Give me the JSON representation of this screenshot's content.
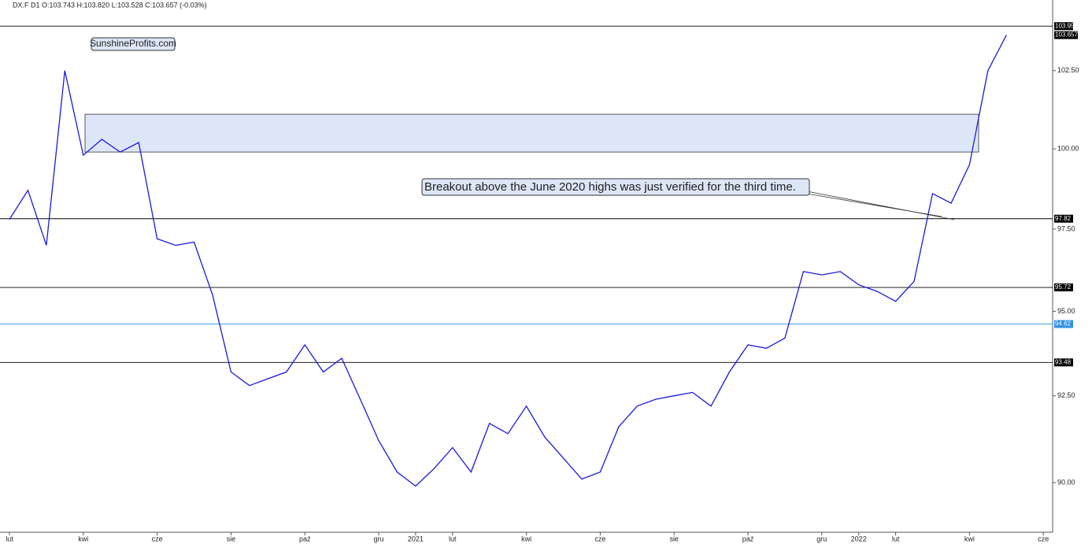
{
  "chart_data": {
    "type": "line",
    "header": "DX.F  D1  O:103.743  H:103.820  L:103.528  C:103.657  (-0.03%)",
    "watermark": "SunshineProfits.com",
    "annotation": "Breakout above the June 2020 highs was just verified for the third time.",
    "categories": [
      "lut",
      null,
      null,
      null,
      "kwi",
      null,
      null,
      null,
      "cze",
      null,
      null,
      null,
      "sie",
      null,
      null,
      null,
      "paź",
      null,
      null,
      null,
      "gru",
      null,
      "2021",
      null,
      "lut",
      null,
      null,
      null,
      "kwi",
      null,
      null,
      null,
      "cze",
      null,
      null,
      null,
      "sie",
      null,
      null,
      null,
      "paź",
      null,
      null,
      null,
      "gru",
      null,
      "2022",
      null,
      "lut",
      null,
      null,
      null,
      "kwi",
      null,
      null,
      null,
      "cze"
    ],
    "series": [
      {
        "color": "#1a1adb",
        "values": [
          97.8,
          98.7,
          97.0,
          102.5,
          99.8,
          100.3,
          99.9,
          100.2,
          97.2,
          97.0,
          97.1,
          95.5,
          93.2,
          92.8,
          93.0,
          93.2,
          94.0,
          93.2,
          93.6,
          92.4,
          91.2,
          90.3,
          89.9,
          90.4,
          91.0,
          90.3,
          91.7,
          91.4,
          92.2,
          91.3,
          90.7,
          90.1,
          90.3,
          91.6,
          92.2,
          92.4,
          92.5,
          92.6,
          92.2,
          93.2,
          94.0,
          93.9,
          94.2,
          96.2,
          96.1,
          96.2,
          95.8,
          95.6,
          95.3,
          95.9,
          98.6,
          98.3,
          99.5,
          102.5,
          103.657,
          null,
          null
        ]
      }
    ],
    "ylim": [
      88.6,
      104.5
    ],
    "log_scale": true,
    "yticks": [
      {
        "value": 90,
        "label": "90.00"
      },
      {
        "value": 92.5,
        "label": "92.50"
      },
      {
        "value": 95,
        "label": "95.00"
      },
      {
        "value": 97.5,
        "label": "97.50"
      },
      {
        "value": 100,
        "label": "100.00"
      },
      {
        "value": 102.5,
        "label": "102.50"
      }
    ],
    "levels": [
      {
        "value": 103.95,
        "color": "#000000"
      },
      {
        "value": 97.82,
        "color": "#000000"
      },
      {
        "value": 95.72,
        "color": "#000000"
      },
      {
        "value": 94.62,
        "color": "#2f8fe6"
      },
      {
        "value": 93.48,
        "color": "#000000"
      }
    ],
    "last_price": 103.657,
    "zone": [
      99.9,
      101.1
    ]
  }
}
